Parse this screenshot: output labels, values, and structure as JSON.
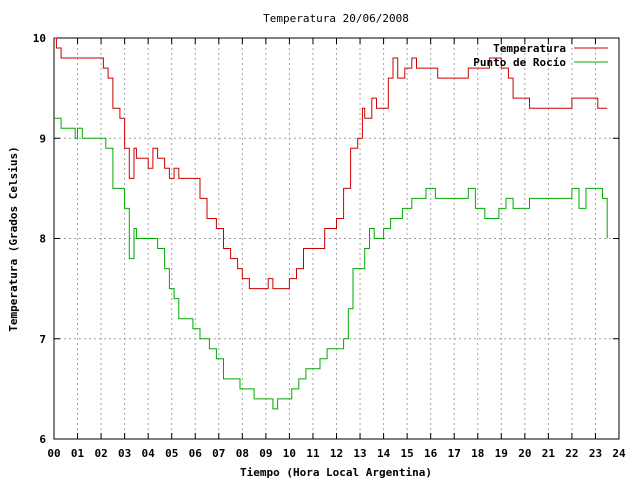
{
  "chart_data": {
    "type": "line",
    "title": "Temperatura 20/06/2008",
    "xlabel": "Tiempo (Hora Local Argentina)",
    "ylabel": "Temperatura (Grados Celsius)",
    "xlim": [
      0,
      24
    ],
    "ylim": [
      6,
      10
    ],
    "grid": true,
    "legend_position": "top-right",
    "x_ticks": [
      "00",
      "01",
      "02",
      "03",
      "04",
      "05",
      "06",
      "07",
      "08",
      "09",
      "10",
      "11",
      "12",
      "13",
      "14",
      "15",
      "16",
      "17",
      "18",
      "19",
      "20",
      "21",
      "22",
      "23",
      "24"
    ],
    "y_ticks": [
      "6",
      "7",
      "8",
      "9",
      "10"
    ],
    "series": [
      {
        "name": "Temperatura",
        "color": "#cc0000",
        "points": [
          [
            0.0,
            10.0
          ],
          [
            0.1,
            9.9
          ],
          [
            0.3,
            9.8
          ],
          [
            0.5,
            9.8
          ],
          [
            1.0,
            9.8
          ],
          [
            1.5,
            9.8
          ],
          [
            2.0,
            9.8
          ],
          [
            2.1,
            9.7
          ],
          [
            2.3,
            9.6
          ],
          [
            2.5,
            9.3
          ],
          [
            2.8,
            9.2
          ],
          [
            3.0,
            8.9
          ],
          [
            3.2,
            8.6
          ],
          [
            3.4,
            8.9
          ],
          [
            3.5,
            8.8
          ],
          [
            3.8,
            8.8
          ],
          [
            4.0,
            8.7
          ],
          [
            4.2,
            8.9
          ],
          [
            4.4,
            8.8
          ],
          [
            4.7,
            8.7
          ],
          [
            4.9,
            8.6
          ],
          [
            5.1,
            8.7
          ],
          [
            5.3,
            8.6
          ],
          [
            5.6,
            8.6
          ],
          [
            6.0,
            8.6
          ],
          [
            6.2,
            8.4
          ],
          [
            6.5,
            8.2
          ],
          [
            6.9,
            8.1
          ],
          [
            7.2,
            7.9
          ],
          [
            7.5,
            7.8
          ],
          [
            7.8,
            7.7
          ],
          [
            8.0,
            7.6
          ],
          [
            8.3,
            7.5
          ],
          [
            8.6,
            7.5
          ],
          [
            8.9,
            7.5
          ],
          [
            9.1,
            7.6
          ],
          [
            9.3,
            7.5
          ],
          [
            9.6,
            7.5
          ],
          [
            9.8,
            7.5
          ],
          [
            10.0,
            7.6
          ],
          [
            10.3,
            7.7
          ],
          [
            10.6,
            7.9
          ],
          [
            11.0,
            7.9
          ],
          [
            11.5,
            8.1
          ],
          [
            12.0,
            8.2
          ],
          [
            12.3,
            8.5
          ],
          [
            12.6,
            8.9
          ],
          [
            12.9,
            9.0
          ],
          [
            13.1,
            9.3
          ],
          [
            13.2,
            9.2
          ],
          [
            13.5,
            9.4
          ],
          [
            13.7,
            9.3
          ],
          [
            14.0,
            9.3
          ],
          [
            14.2,
            9.6
          ],
          [
            14.4,
            9.8
          ],
          [
            14.6,
            9.6
          ],
          [
            14.9,
            9.7
          ],
          [
            15.2,
            9.8
          ],
          [
            15.4,
            9.7
          ],
          [
            15.6,
            9.7
          ],
          [
            16.0,
            9.7
          ],
          [
            16.3,
            9.6
          ],
          [
            16.8,
            9.6
          ],
          [
            17.2,
            9.6
          ],
          [
            17.6,
            9.7
          ],
          [
            18.0,
            9.7
          ],
          [
            18.5,
            9.8
          ],
          [
            19.0,
            9.7
          ],
          [
            19.3,
            9.6
          ],
          [
            19.5,
            9.4
          ],
          [
            19.8,
            9.4
          ],
          [
            20.2,
            9.3
          ],
          [
            20.6,
            9.3
          ],
          [
            21.0,
            9.3
          ],
          [
            21.5,
            9.3
          ],
          [
            22.0,
            9.4
          ],
          [
            22.4,
            9.4
          ],
          [
            22.8,
            9.4
          ],
          [
            23.1,
            9.3
          ],
          [
            23.4,
            9.3
          ],
          [
            23.5,
            9.3
          ]
        ]
      },
      {
        "name": "Punto de Rocío",
        "color": "#00aa00",
        "points": [
          [
            0.0,
            9.2
          ],
          [
            0.3,
            9.1
          ],
          [
            0.6,
            9.1
          ],
          [
            0.9,
            9.0
          ],
          [
            1.0,
            9.1
          ],
          [
            1.2,
            9.0
          ],
          [
            1.5,
            9.0
          ],
          [
            2.0,
            9.0
          ],
          [
            2.2,
            8.9
          ],
          [
            2.5,
            8.5
          ],
          [
            2.8,
            8.5
          ],
          [
            3.0,
            8.3
          ],
          [
            3.2,
            7.8
          ],
          [
            3.4,
            8.1
          ],
          [
            3.5,
            8.0
          ],
          [
            3.8,
            8.0
          ],
          [
            4.2,
            8.0
          ],
          [
            4.4,
            7.9
          ],
          [
            4.7,
            7.7
          ],
          [
            4.9,
            7.5
          ],
          [
            5.1,
            7.4
          ],
          [
            5.3,
            7.2
          ],
          [
            5.6,
            7.2
          ],
          [
            5.9,
            7.1
          ],
          [
            6.1,
            7.1
          ],
          [
            6.2,
            7.0
          ],
          [
            6.4,
            7.0
          ],
          [
            6.6,
            6.9
          ],
          [
            6.9,
            6.8
          ],
          [
            7.2,
            6.6
          ],
          [
            7.6,
            6.6
          ],
          [
            7.9,
            6.5
          ],
          [
            8.2,
            6.5
          ],
          [
            8.5,
            6.4
          ],
          [
            8.9,
            6.4
          ],
          [
            9.1,
            6.4
          ],
          [
            9.3,
            6.3
          ],
          [
            9.5,
            6.4
          ],
          [
            9.8,
            6.4
          ],
          [
            10.1,
            6.5
          ],
          [
            10.4,
            6.6
          ],
          [
            10.7,
            6.7
          ],
          [
            11.0,
            6.7
          ],
          [
            11.3,
            6.8
          ],
          [
            11.6,
            6.9
          ],
          [
            12.0,
            6.9
          ],
          [
            12.3,
            7.0
          ],
          [
            12.5,
            7.3
          ],
          [
            12.7,
            7.7
          ],
          [
            13.0,
            7.7
          ],
          [
            13.2,
            7.9
          ],
          [
            13.4,
            8.1
          ],
          [
            13.6,
            8.0
          ],
          [
            14.0,
            8.1
          ],
          [
            14.3,
            8.2
          ],
          [
            14.5,
            8.2
          ],
          [
            14.8,
            8.3
          ],
          [
            15.0,
            8.3
          ],
          [
            15.2,
            8.4
          ],
          [
            15.5,
            8.4
          ],
          [
            15.8,
            8.5
          ],
          [
            16.2,
            8.4
          ],
          [
            16.6,
            8.4
          ],
          [
            17.0,
            8.4
          ],
          [
            17.3,
            8.4
          ],
          [
            17.6,
            8.5
          ],
          [
            17.9,
            8.3
          ],
          [
            18.3,
            8.2
          ],
          [
            18.6,
            8.2
          ],
          [
            18.9,
            8.3
          ],
          [
            19.2,
            8.4
          ],
          [
            19.5,
            8.3
          ],
          [
            19.8,
            8.3
          ],
          [
            20.2,
            8.4
          ],
          [
            20.6,
            8.4
          ],
          [
            21.0,
            8.4
          ],
          [
            21.4,
            8.4
          ],
          [
            21.8,
            8.4
          ],
          [
            22.0,
            8.5
          ],
          [
            22.3,
            8.3
          ],
          [
            22.6,
            8.5
          ],
          [
            23.0,
            8.5
          ],
          [
            23.3,
            8.4
          ],
          [
            23.5,
            8.0
          ]
        ]
      }
    ]
  }
}
